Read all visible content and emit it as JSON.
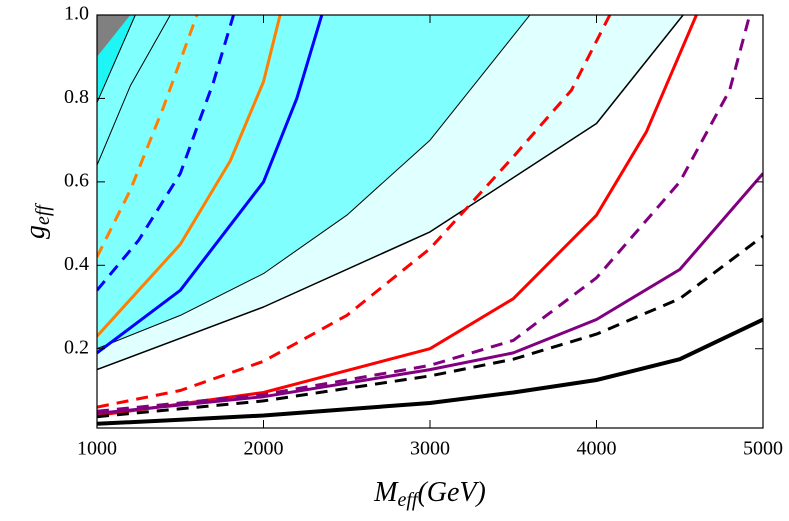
{
  "chart_data": {
    "type": "line",
    "xlabel": {
      "main": "M",
      "sub": "eff",
      "rest": "(GeV)"
    },
    "ylabel": {
      "main": "g",
      "sub": "eff"
    },
    "xlim": [
      1000,
      5000
    ],
    "ylim": [
      0.01,
      1.0
    ],
    "xticks": [
      1000,
      2000,
      3000,
      4000,
      5000
    ],
    "yticks": [
      0.2,
      0.4,
      0.6,
      0.8,
      {
        "value": 1.0,
        "label": "1.0"
      }
    ],
    "regions": [
      {
        "color": "#e0ffff",
        "x": [
          1000,
          2000,
          3000,
          4000,
          4520
        ],
        "values": [
          0.15,
          0.3,
          0.48,
          0.74,
          1.0
        ]
      },
      {
        "color": "#80ffff",
        "x": [
          1000,
          1500,
          2000,
          2500,
          3000,
          3600
        ],
        "values": [
          0.2,
          0.28,
          0.38,
          0.52,
          0.7,
          1.0
        ]
      },
      {
        "color": "#20f5f5",
        "x": [
          1000,
          1230
        ],
        "values": [
          0.79,
          1.0
        ]
      },
      {
        "color": "#808080",
        "x": [
          1000,
          1200
        ],
        "values": [
          0.9,
          1.0
        ]
      }
    ],
    "series": [
      {
        "color": "#000000",
        "style": "solid",
        "width": 1,
        "x": [
          1000,
          1200,
          1440
        ],
        "values": [
          0.64,
          0.83,
          1.0
        ]
      },
      {
        "color": "#000000",
        "style": "solid",
        "width": 1,
        "x": [
          1000,
          1230
        ],
        "values": [
          0.79,
          1.0
        ]
      },
      {
        "color": "#000000",
        "style": "solid",
        "width": 1,
        "x": [
          1000,
          1500,
          2000,
          2500,
          3000,
          3600
        ],
        "values": [
          0.2,
          0.28,
          0.38,
          0.52,
          0.7,
          1.0
        ]
      },
      {
        "color": "#000000",
        "style": "solid",
        "width": 1.5,
        "x": [
          1000,
          2000,
          3000,
          4000,
          4520
        ],
        "values": [
          0.15,
          0.3,
          0.48,
          0.74,
          1.0
        ]
      },
      {
        "color": "#ff8000",
        "style": "dashed",
        "width": 3,
        "x": [
          1000,
          1200,
          1400,
          1600
        ],
        "values": [
          0.42,
          0.58,
          0.78,
          1.0
        ]
      },
      {
        "color": "#0000ff",
        "style": "dashed",
        "width": 3,
        "x": [
          1000,
          1250,
          1500,
          1700,
          1820
        ],
        "values": [
          0.34,
          0.46,
          0.62,
          0.84,
          1.0
        ]
      },
      {
        "color": "#ff8000",
        "style": "solid",
        "width": 3,
        "x": [
          1000,
          1500,
          1800,
          2000,
          2100
        ],
        "values": [
          0.23,
          0.45,
          0.65,
          0.84,
          1.0
        ]
      },
      {
        "color": "#0000ff",
        "style": "solid",
        "width": 3,
        "x": [
          1000,
          1500,
          2000,
          2200,
          2350
        ],
        "values": [
          0.19,
          0.34,
          0.6,
          0.8,
          1.0
        ]
      },
      {
        "color": "#ff0000",
        "style": "dashed",
        "width": 3,
        "x": [
          1000,
          1500,
          2000,
          2500,
          3000,
          3500,
          3850,
          4080
        ],
        "values": [
          0.06,
          0.1,
          0.17,
          0.28,
          0.44,
          0.66,
          0.82,
          1.0
        ]
      },
      {
        "color": "#ff0000",
        "style": "solid",
        "width": 3,
        "x": [
          1000,
          2000,
          3000,
          3500,
          4000,
          4300,
          4600
        ],
        "values": [
          0.04,
          0.095,
          0.2,
          0.32,
          0.52,
          0.72,
          1.0
        ]
      },
      {
        "color": "#800080",
        "style": "dashed",
        "width": 3,
        "x": [
          1000,
          2000,
          3000,
          3500,
          4000,
          4500,
          4800,
          4920
        ],
        "values": [
          0.05,
          0.09,
          0.16,
          0.22,
          0.37,
          0.6,
          0.82,
          1.0
        ]
      },
      {
        "color": "#800080",
        "style": "solid",
        "width": 3,
        "x": [
          1000,
          2000,
          3000,
          3500,
          4000,
          4500,
          5000
        ],
        "values": [
          0.045,
          0.085,
          0.15,
          0.19,
          0.27,
          0.39,
          0.62
        ]
      },
      {
        "color": "#000000",
        "style": "dashed",
        "width": 3,
        "x": [
          1000,
          2000,
          3000,
          3500,
          4000,
          4500,
          5000
        ],
        "values": [
          0.037,
          0.075,
          0.135,
          0.175,
          0.235,
          0.32,
          0.47
        ]
      },
      {
        "color": "#000000",
        "style": "solid",
        "width": 4,
        "x": [
          1000,
          1500,
          2000,
          2500,
          3000,
          3500,
          4000,
          4500,
          5000
        ],
        "values": [
          0.02,
          0.03,
          0.04,
          0.055,
          0.07,
          0.095,
          0.125,
          0.175,
          0.27
        ]
      }
    ]
  }
}
